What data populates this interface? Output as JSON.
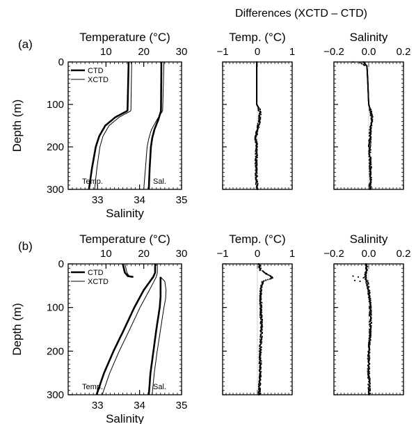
{
  "header": "Differences (XCTD – CTD)",
  "chart_data": [
    {
      "id": "a",
      "panel_label": "(a)",
      "type": "line",
      "top_axis": {
        "label": "Temperature (°C)",
        "range": [
          0,
          30
        ],
        "ticks": [
          "10",
          "20",
          "30"
        ],
        "tick_values": [
          10,
          20,
          30
        ]
      },
      "bottom_axis": {
        "label": "Salinity",
        "range": [
          32.3,
          35
        ],
        "ticks": [
          "33",
          "34",
          "35"
        ],
        "tick_values": [
          33,
          34,
          35
        ]
      },
      "y_axis": {
        "label": "Depth (m)",
        "range": [
          0,
          300
        ],
        "inverted": true,
        "ticks": [
          "0",
          "100",
          "200",
          "300"
        ],
        "tick_values": [
          0,
          100,
          200,
          300
        ]
      },
      "legend": {
        "position": "top-left",
        "entries": [
          {
            "name": "CTD",
            "style": "thick"
          },
          {
            "name": "XCTD",
            "style": "thin"
          }
        ]
      },
      "annotations": [
        "Temp.",
        "Sal."
      ],
      "series": [
        {
          "name": "CTD",
          "variable": "Temp.",
          "axis": "top",
          "depth": [
            0,
            115,
            130,
            150,
            175,
            200,
            250,
            300
          ],
          "values": [
            16,
            15.7,
            12.5,
            9.8,
            8.2,
            7.3,
            6.3,
            5.5
          ]
        },
        {
          "name": "XCTD",
          "variable": "Temp.",
          "axis": "top",
          "depth": [
            0,
            115,
            130,
            150,
            175,
            200,
            250,
            300
          ],
          "values": [
            16.8,
            16.6,
            13.5,
            10.8,
            9.2,
            8.4,
            7.6,
            7
          ]
        },
        {
          "name": "CTD",
          "variable": "Sal.",
          "axis": "bottom",
          "depth": [
            0,
            115,
            135,
            160,
            180,
            200,
            250,
            300
          ],
          "values": [
            34.52,
            34.51,
            34.45,
            34.35,
            34.3,
            34.27,
            34.24,
            34.22
          ]
        },
        {
          "name": "XCTD",
          "variable": "Sal.",
          "axis": "bottom",
          "depth": [
            0,
            115,
            135,
            160,
            180,
            200,
            250,
            300
          ],
          "values": [
            34.58,
            34.55,
            34.42,
            34.28,
            34.22,
            34.18,
            34.14,
            34.1
          ]
        }
      ]
    },
    {
      "id": "a_temp_diff",
      "type": "scatter",
      "title": "Temp. (°C)",
      "x_axis": {
        "range": [
          -1,
          1
        ],
        "ticks": [
          "−1",
          "0",
          "1"
        ],
        "tick_values": [
          -1,
          0,
          1
        ]
      },
      "y_axis": {
        "range": [
          0,
          300
        ],
        "inverted": true
      },
      "noise_from_depth": 110,
      "series": [
        {
          "name": "XCTD – CTD",
          "depth": [
            0,
            100,
            110,
            120,
            140,
            160,
            180,
            200,
            250,
            300
          ],
          "values": [
            -0.02,
            -0.02,
            0.05,
            0.08,
            0.05,
            0.0,
            -0.05,
            -0.02,
            -0.04,
            -0.01
          ]
        }
      ]
    },
    {
      "id": "a_sal_diff",
      "type": "scatter",
      "title": "Salinity",
      "x_axis": {
        "range": [
          -0.2,
          0.2
        ],
        "ticks": [
          "−0.2",
          "0.0",
          "0.2"
        ],
        "tick_values": [
          -0.2,
          0,
          0.2
        ]
      },
      "y_axis": {
        "range": [
          0,
          300
        ],
        "inverted": true
      },
      "surface_outliers": [
        [
          -0.09,
          0
        ],
        [
          -0.05,
          2
        ],
        [
          -0.04,
          4
        ],
        [
          -0.03,
          6
        ],
        [
          -0.025,
          8
        ]
      ],
      "noise_from_depth": 110,
      "series": [
        {
          "name": "XCTD – CTD",
          "depth": [
            0,
            10,
            50,
            100,
            120,
            140,
            160,
            200,
            250,
            300
          ],
          "values": [
            -0.03,
            -0.01,
            -0.005,
            0.0,
            0.015,
            0.02,
            0.01,
            0.005,
            0.01,
            0.01
          ]
        }
      ]
    },
    {
      "id": "b",
      "panel_label": "(b)",
      "type": "line",
      "top_axis": {
        "label": "Temperature (°C)",
        "range": [
          0,
          30
        ],
        "ticks": [
          "10",
          "20",
          "30"
        ],
        "tick_values": [
          10,
          20,
          30
        ]
      },
      "bottom_axis": {
        "label": "Salinity",
        "range": [
          32.3,
          35
        ],
        "ticks": [
          "33",
          "34",
          "35"
        ],
        "tick_values": [
          33,
          34,
          35
        ]
      },
      "y_axis": {
        "label": "Depth (m)",
        "range": [
          0,
          300
        ],
        "inverted": true,
        "ticks": [
          "0",
          "100",
          "200",
          "300"
        ],
        "tick_values": [
          0,
          100,
          200,
          300
        ]
      },
      "legend": {
        "position": "top-left",
        "entries": [
          {
            "name": "CTD",
            "style": "thick"
          },
          {
            "name": "XCTD",
            "style": "thin"
          }
        ]
      },
      "annotations": [
        "Temp.",
        "Sal."
      ],
      "series": [
        {
          "name": "CTD",
          "variable": "Sal.",
          "axis": "bottom",
          "depth": [
            0,
            20,
            28,
            30
          ],
          "values": [
            33.6,
            33.65,
            33.72,
            33.85
          ]
        },
        {
          "name": "XCTD",
          "variable": "Sal.",
          "axis": "bottom",
          "depth": [
            0,
            20,
            28,
            30
          ],
          "values": [
            33.65,
            33.7,
            33.75,
            33.85
          ]
        },
        {
          "name": "CTD",
          "variable": "Temp.",
          "axis": "top",
          "depth": [
            0,
            20,
            30,
            60,
            100,
            150,
            200,
            250,
            300
          ],
          "values": [
            23,
            23,
            22.5,
            20,
            17.5,
            14.8,
            12,
            9.5,
            7.5
          ]
        },
        {
          "name": "XCTD",
          "variable": "Temp.",
          "axis": "top",
          "depth": [
            0,
            20,
            30,
            60,
            100,
            150,
            200,
            250,
            300
          ],
          "values": [
            23.6,
            23.6,
            23.3,
            21.5,
            19,
            16.3,
            13.5,
            11,
            9
          ]
        },
        {
          "name": "CTD",
          "variable": "Sal.",
          "axis": "bottom",
          "depth": [
            30,
            50,
            75,
            100,
            150,
            200,
            250,
            300
          ],
          "values": [
            34.5,
            34.5,
            34.5,
            34.48,
            34.4,
            34.33,
            34.26,
            34.22
          ]
        },
        {
          "name": "XCTD",
          "variable": "Sal.",
          "axis": "bottom",
          "depth": [
            30,
            40,
            60,
            80,
            100,
            150,
            200,
            250,
            300
          ],
          "values": [
            34.5,
            34.6,
            34.63,
            34.62,
            34.58,
            34.5,
            34.42,
            34.35,
            34.3
          ]
        }
      ]
    },
    {
      "id": "b_temp_diff",
      "type": "scatter",
      "title": "Temp. (°C)",
      "x_axis": {
        "range": [
          -1,
          1
        ],
        "ticks": [
          "−1",
          "0",
          "1"
        ],
        "tick_values": [
          -1,
          0,
          1
        ]
      },
      "y_axis": {
        "range": [
          0,
          300
        ],
        "inverted": true
      },
      "noise_from_depth": 0,
      "series": [
        {
          "name": "XCTD – CTD",
          "depth": [
            0,
            15,
            25,
            32,
            40,
            60,
            100,
            150,
            200,
            250,
            300
          ],
          "values": [
            0.05,
            0.1,
            0.3,
            0.45,
            0.15,
            0.1,
            0.1,
            0.12,
            0.08,
            0.08,
            0.05
          ]
        }
      ]
    },
    {
      "id": "b_sal_diff",
      "type": "scatter",
      "title": "Salinity",
      "x_axis": {
        "range": [
          -0.2,
          0.2
        ],
        "ticks": [
          "−0.2",
          "0.0",
          "0.2"
        ],
        "tick_values": [
          -0.2,
          0,
          0.2
        ]
      },
      "y_axis": {
        "range": [
          0,
          300
        ],
        "inverted": true
      },
      "surface_outliers": [
        [
          -0.09,
          28
        ],
        [
          -0.06,
          30
        ],
        [
          -0.03,
          32
        ],
        [
          -0.08,
          38
        ],
        [
          -0.05,
          40
        ]
      ],
      "noise_from_depth": 0,
      "series": [
        {
          "name": "XCTD – CTD",
          "depth": [
            0,
            20,
            30,
            40,
            60,
            100,
            150,
            200,
            250,
            300
          ],
          "values": [
            -0.01,
            -0.015,
            -0.02,
            -0.01,
            0.0,
            0.01,
            0.01,
            0.0,
            0.0,
            0.005
          ]
        }
      ]
    }
  ]
}
